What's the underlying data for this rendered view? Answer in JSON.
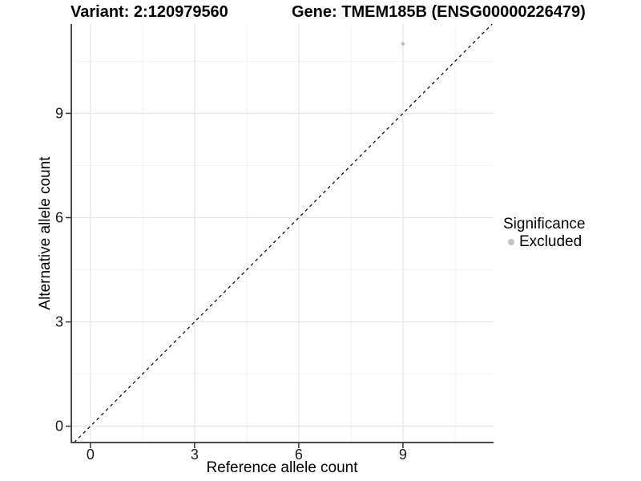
{
  "header": {
    "variant_title": "Variant: 2:120979560",
    "gene_title": "Gene: TMEM185B (ENSG00000226479)"
  },
  "legend": {
    "title": "Significance",
    "items": [
      {
        "label": "Excluded",
        "color": "#c3c3c3",
        "marker": "circle"
      }
    ]
  },
  "chart_data": {
    "type": "scatter",
    "title": "Variant: 2:120979560 — Gene: TMEM185B (ENSG00000226479)",
    "xlabel": "Reference allele count",
    "ylabel": "Alternative allele count",
    "xlim": [
      -0.55,
      11.61
    ],
    "ylim": [
      -0.47,
      11.57
    ],
    "x_ticks": [
      0,
      3,
      6,
      9
    ],
    "y_ticks": [
      0,
      3,
      6,
      9
    ],
    "x_minor_ticks": [
      1.5,
      4.5,
      7.5,
      10.5
    ],
    "y_minor_ticks": [
      1.5,
      4.5,
      7.5,
      10.5
    ],
    "grid": "major+minor",
    "legend_position": "right",
    "legend_title": "Significance",
    "series": [
      {
        "name": "Excluded",
        "color": "#c3c3c3",
        "marker": "circle",
        "point_radius": 2.4,
        "points": [
          {
            "x": 9,
            "y": 11
          }
        ]
      }
    ],
    "reference_line": {
      "kind": "identity y=x",
      "style": "dashed",
      "color": "#000000"
    }
  },
  "style": {
    "background": "#ffffff",
    "point_color": "#c3c3c3",
    "grid_major_color": "#e4e4e4",
    "grid_minor_color": "#f2f2f2",
    "axis_line_color": "#4a4a4a",
    "tick_color": "#333333",
    "tick_label_color": "#1a1a1a",
    "dashed_line_color": "#000000"
  }
}
